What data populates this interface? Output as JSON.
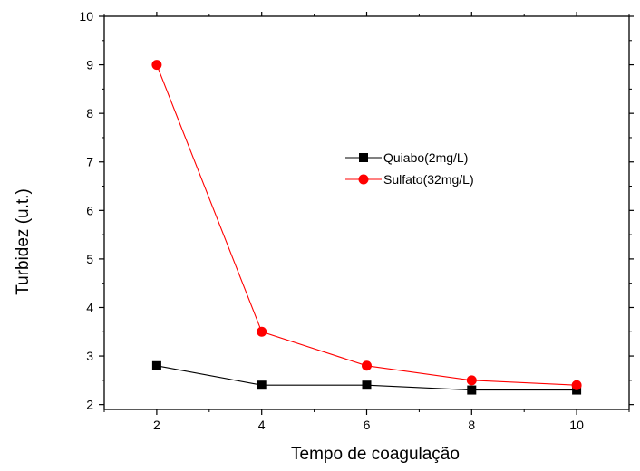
{
  "chart_data": {
    "type": "line",
    "title": "",
    "xlabel": "Tempo de coagulação",
    "ylabel": "Turbidez (u.t.)",
    "xlim": [
      1,
      11
    ],
    "ylim": [
      1.9,
      10
    ],
    "x_ticks": [
      2,
      4,
      6,
      8,
      10
    ],
    "y_ticks": [
      2,
      3,
      4,
      5,
      6,
      7,
      8,
      9,
      10
    ],
    "grid": false,
    "legend_position": "center-right",
    "series": [
      {
        "name": "Quiabo(2mg/L)",
        "color": "#000000",
        "marker": "square",
        "x": [
          2,
          4,
          6,
          8,
          10
        ],
        "y": [
          2.8,
          2.4,
          2.4,
          2.3,
          2.3
        ]
      },
      {
        "name": "Sulfato(32mg/L)",
        "color": "#ff0000",
        "marker": "circle",
        "x": [
          2,
          4,
          6,
          8,
          10
        ],
        "y": [
          9.0,
          3.5,
          2.8,
          2.5,
          2.4
        ]
      }
    ]
  }
}
